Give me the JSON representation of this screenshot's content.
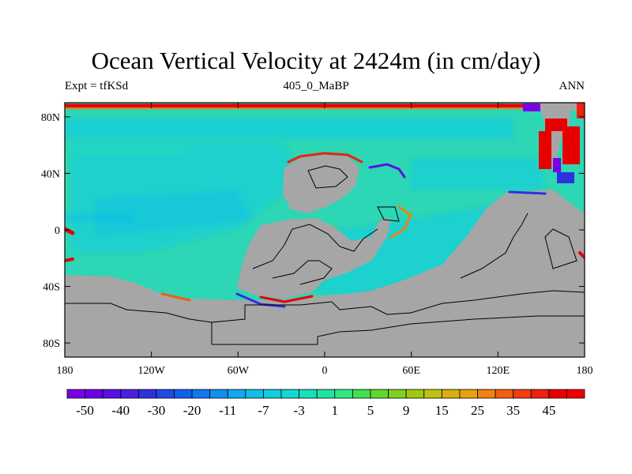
{
  "title": "Ocean Vertical Velocity at 2424m (in cm/day)",
  "subtitle_left": "Expt = tfKSd",
  "subtitle_center": "405_0_MaBP",
  "subtitle_right": "ANN",
  "map": {
    "projection": "cylindrical equidistant",
    "lon_range": [
      -180,
      180
    ],
    "lat_range": [
      -90,
      90
    ],
    "x_ticks": [
      {
        "value": -180,
        "label": "180"
      },
      {
        "value": -120,
        "label": "120W"
      },
      {
        "value": -60,
        "label": "60W"
      },
      {
        "value": 0,
        "label": "0"
      },
      {
        "value": 60,
        "label": "60E"
      },
      {
        "value": 120,
        "label": "120E"
      },
      {
        "value": 180,
        "label": "180"
      }
    ],
    "y_ticks": [
      {
        "value": 80,
        "label": "80N"
      },
      {
        "value": 40,
        "label": "40N"
      },
      {
        "value": 0,
        "label": "0"
      },
      {
        "value": -40,
        "label": "40S"
      },
      {
        "value": -80,
        "label": "80S"
      }
    ],
    "land_color": "#a6a6a6",
    "ocean_background_color": "#2dd6b4"
  },
  "colorbar": {
    "colors": [
      "#7a00e6",
      "#6a00e6",
      "#5a10e0",
      "#4a20e0",
      "#3030e0",
      "#2048e6",
      "#1060ee",
      "#1078f0",
      "#1090f0",
      "#10a8ee",
      "#10bee6",
      "#10cde0",
      "#10dad0",
      "#18e0b8",
      "#20e4a0",
      "#30e880",
      "#40e050",
      "#60d830",
      "#80d020",
      "#a0c810",
      "#c0c010",
      "#d8b010",
      "#e8a010",
      "#f08010",
      "#f06010",
      "#f04010",
      "#f02010",
      "#e80000",
      "#f00000"
    ],
    "labels": [
      {
        "text": "-50",
        "boundary": 0
      },
      {
        "text": "-40",
        "boundary": 2
      },
      {
        "text": "-30",
        "boundary": 4
      },
      {
        "text": "-20",
        "boundary": 6
      },
      {
        "text": "-11",
        "boundary": 8
      },
      {
        "text": "-7",
        "boundary": 10
      },
      {
        "text": "-3",
        "boundary": 12
      },
      {
        "text": "1",
        "boundary": 14
      },
      {
        "text": "5",
        "boundary": 16
      },
      {
        "text": "9",
        "boundary": 18
      },
      {
        "text": "15",
        "boundary": 20
      },
      {
        "text": "25",
        "boundary": 22
      },
      {
        "text": "35",
        "boundary": 24
      },
      {
        "text": "45",
        "boundary": 26
      }
    ]
  }
}
